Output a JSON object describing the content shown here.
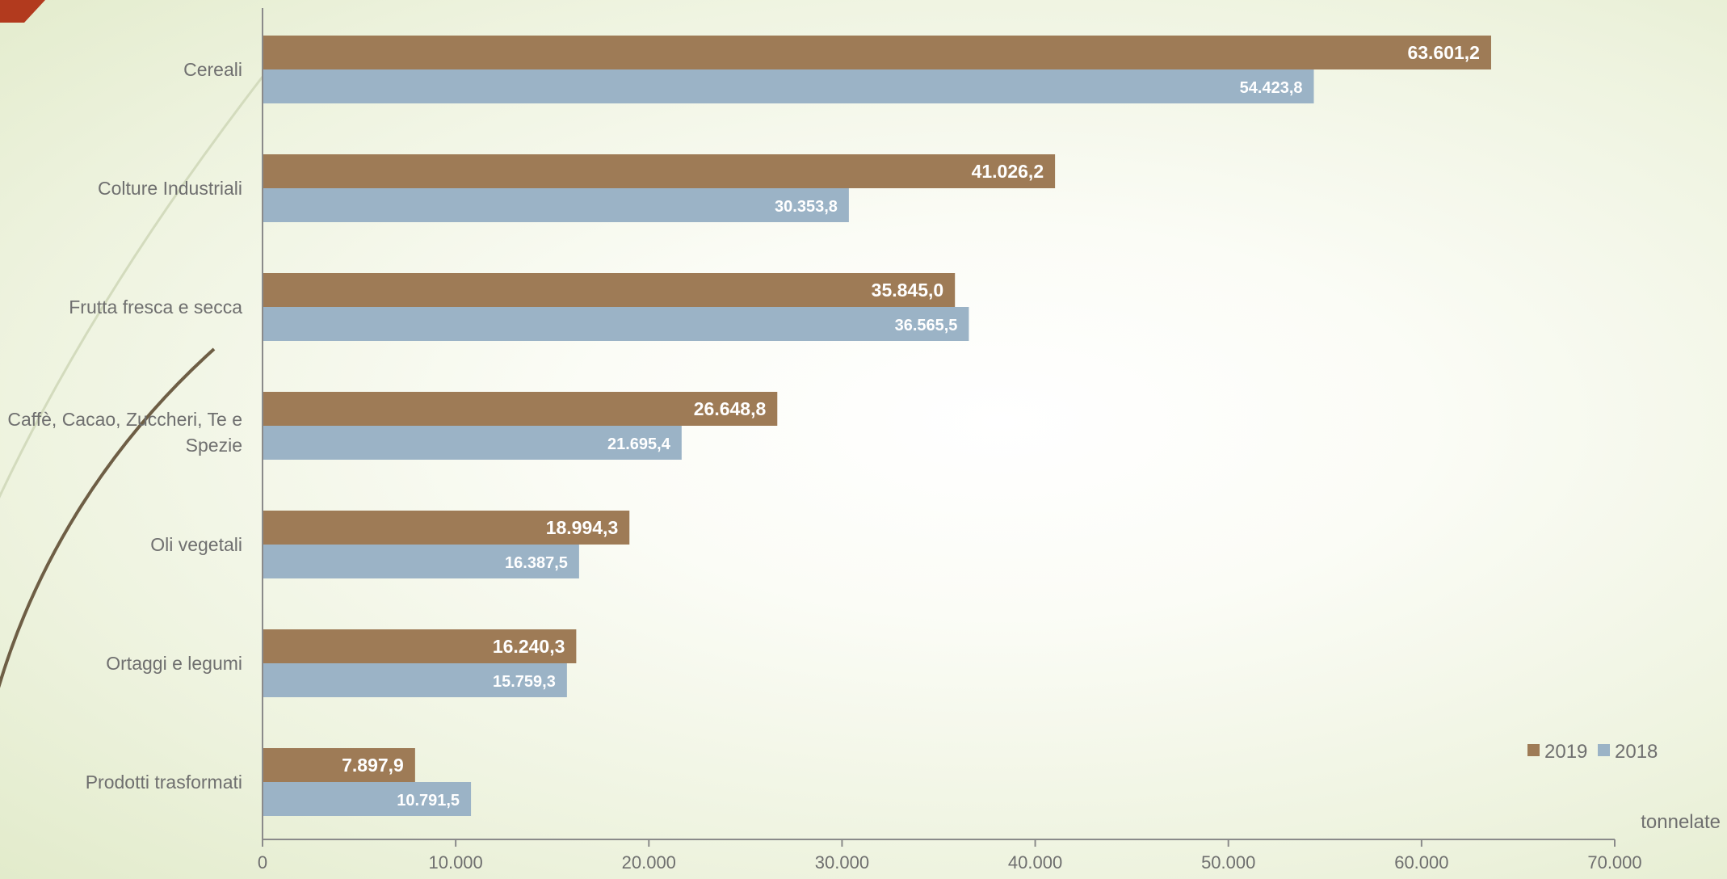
{
  "chart_data": {
    "type": "bar",
    "orientation": "horizontal",
    "categories": [
      "Cereali",
      "Colture Industriali",
      "Frutta fresca e secca",
      "Caffè, Cacao, Zuccheri, Te e Spezie",
      "Oli vegetali",
      "Ortaggi e legumi",
      "Prodotti trasformati"
    ],
    "series": [
      {
        "name": "2019",
        "color": "#9e7b56",
        "values": [
          63601.2,
          41026.2,
          35845.0,
          26648.8,
          18994.3,
          16240.3,
          7897.9
        ],
        "labels": [
          "63.601,2",
          "41.026,2",
          "35.845,0",
          "26.648,8",
          "18.994,3",
          "16.240,3",
          "7.897,9"
        ]
      },
      {
        "name": "2018",
        "color": "#9bb3c6",
        "values": [
          54423.8,
          30353.8,
          36565.5,
          21695.4,
          16387.5,
          15759.3,
          10791.5
        ],
        "labels": [
          "54.423,8",
          "30.353,8",
          "36.565,5",
          "21.695,4",
          "16.387,5",
          "15.759,3",
          "10.791,5"
        ]
      }
    ],
    "xlim": [
      0,
      70000
    ],
    "xticks": [
      0,
      10000,
      20000,
      30000,
      40000,
      50000,
      60000,
      70000
    ],
    "xtick_labels": [
      "0",
      "10.000",
      "20.000",
      "30.000",
      "40.000",
      "50.000",
      "60.000",
      "70.000"
    ],
    "xlabel": "tonnelate",
    "ylabel": "",
    "title": "",
    "legend": {
      "position": "bottom-right",
      "items": [
        "2019",
        "2018"
      ]
    },
    "grid": false
  },
  "colors": {
    "axis": "#8a8a8a",
    "text": "#6f6f6f",
    "corner_accent": "#b23a1e",
    "arc_light": "#d7dec4",
    "arc_dark": "#6e5e45"
  }
}
